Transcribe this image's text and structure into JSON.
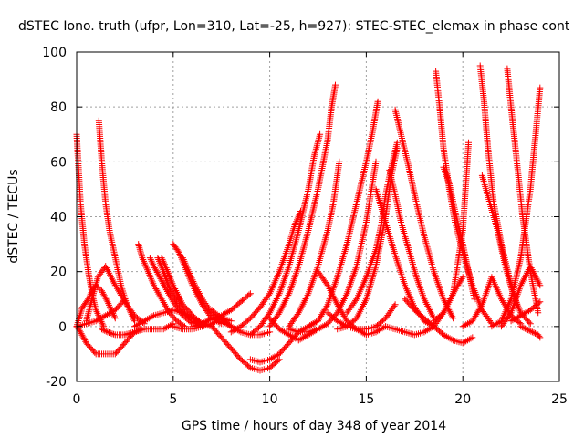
{
  "chart_data": {
    "type": "scatter",
    "title": "dSTEC Iono. truth (ufpr, Lon=310, Lat=-25, h=927): STEC-STEC_elemax in phase cont",
    "xlabel": "GPS time / hours of day 348 of year 2014",
    "ylabel": "dSTEC  / TECUs",
    "xlim": [
      0,
      25
    ],
    "ylim": [
      -20,
      100
    ],
    "xticks": [
      "0",
      "5",
      "10",
      "15",
      "20",
      "25"
    ],
    "yticks": [
      "-20",
      "0",
      "20",
      "40",
      "60",
      "80",
      "100"
    ],
    "grid": true,
    "marker": "+",
    "color": "#ff0000",
    "series": [
      {
        "x": [
          0.0,
          0.2,
          0.4,
          0.6,
          0.8,
          1.0,
          1.4
        ],
        "y": [
          70,
          45,
          30,
          20,
          12,
          6,
          0
        ]
      },
      {
        "x": [
          0.0,
          0.2,
          0.5,
          1.0,
          1.5,
          2.0,
          2.5,
          3.0
        ],
        "y": [
          0,
          -2,
          -6,
          -10,
          -10,
          -10,
          -6,
          -2
        ]
      },
      {
        "x": [
          0.0,
          0.3,
          0.6,
          0.8,
          1.0,
          1.3,
          1.6,
          2.0
        ],
        "y": [
          0,
          7,
          10,
          13,
          15,
          13,
          9,
          3
        ]
      },
      {
        "x": [
          0.5,
          0.8,
          1.1,
          1.5,
          2.0,
          2.5,
          3.0,
          3.5
        ],
        "y": [
          2,
          10,
          18,
          22,
          15,
          9,
          4,
          1
        ]
      },
      {
        "x": [
          0.0,
          0.5,
          1.0,
          1.5,
          2.0,
          2.5
        ],
        "y": [
          0,
          1,
          2,
          4,
          6,
          10
        ]
      },
      {
        "x": [
          1.15,
          1.3,
          1.5,
          1.7,
          2.0,
          2.3,
          2.6,
          3.0
        ],
        "y": [
          75,
          60,
          45,
          35,
          25,
          15,
          8,
          2
        ]
      },
      {
        "x": [
          1.3,
          1.6,
          2.0,
          2.5,
          3.0,
          3.3
        ],
        "y": [
          -1,
          -2,
          -3,
          -3,
          -2,
          -1
        ]
      },
      {
        "x": [
          2.5,
          3.0,
          3.5,
          4.0,
          4.5,
          5.0
        ],
        "y": [
          -3,
          -2,
          -1,
          -1,
          -1,
          1
        ]
      },
      {
        "x": [
          3.2,
          3.4,
          3.7,
          4.0,
          4.4,
          4.8,
          5.2,
          5.6
        ],
        "y": [
          30,
          25,
          20,
          15,
          10,
          5,
          2,
          0
        ]
      },
      {
        "x": [
          3.8,
          4.0,
          4.3,
          4.6,
          5.0,
          5.5,
          6.0
        ],
        "y": [
          25,
          22,
          18,
          14,
          9,
          4,
          1
        ]
      },
      {
        "x": [
          4.2,
          4.5,
          4.8,
          5.2,
          5.6,
          6.0,
          6.5
        ],
        "y": [
          25,
          20,
          14,
          9,
          5,
          2,
          0
        ]
      },
      {
        "x": [
          3.0,
          3.5,
          4.0,
          4.5,
          5.0,
          5.5,
          6.0,
          6.5,
          7.0
        ],
        "y": [
          0,
          2,
          4,
          5,
          6,
          5,
          3,
          1,
          0
        ]
      },
      {
        "x": [
          4.4,
          4.6,
          5.0,
          5.5,
          6.0,
          6.5,
          7.0
        ],
        "y": [
          25,
          22,
          15,
          8,
          4,
          1,
          0
        ]
      },
      {
        "x": [
          5.0,
          5.3,
          5.6,
          6.0,
          6.5,
          7.0,
          7.5
        ],
        "y": [
          30,
          27,
          22,
          15,
          8,
          3,
          1
        ]
      },
      {
        "x": [
          5.5,
          5.8,
          6.2,
          6.6,
          7.0,
          7.5,
          8.0
        ],
        "y": [
          25,
          20,
          14,
          9,
          5,
          2,
          0
        ]
      },
      {
        "x": [
          5.0,
          5.5,
          6.0,
          6.5,
          7.0,
          7.5,
          8.0
        ],
        "y": [
          0,
          -1,
          -1,
          0,
          1,
          3,
          2
        ]
      },
      {
        "x": [
          7.0,
          7.5,
          8.0,
          8.5,
          9.0,
          9.5,
          10.0,
          10.5
        ],
        "y": [
          0,
          -4,
          -8,
          -12,
          -15,
          -16,
          -15,
          -12
        ]
      },
      {
        "x": [
          6.0,
          6.5,
          7.0,
          7.5,
          8.0,
          8.5,
          9.0
        ],
        "y": [
          0,
          1,
          3,
          4,
          6,
          9,
          12
        ]
      },
      {
        "x": [
          7.0,
          7.5,
          8.0,
          8.5,
          9.0,
          9.5,
          10.0
        ],
        "y": [
          6,
          3,
          0,
          -2,
          -3,
          -3,
          -2
        ]
      },
      {
        "x": [
          9.0,
          9.5,
          10.0,
          10.5,
          11.0,
          11.5,
          12.0,
          12.5
        ],
        "y": [
          -12,
          -13,
          -12,
          -10,
          -6,
          -2,
          0,
          2
        ]
      },
      {
        "x": [
          8.0,
          8.5,
          9.0,
          9.5,
          10.0,
          10.5,
          11.0,
          11.3,
          11.6
        ],
        "y": [
          -2,
          0,
          3,
          7,
          12,
          20,
          30,
          37,
          42
        ]
      },
      {
        "x": [
          9.0,
          9.5,
          10.0,
          10.5,
          11.0,
          11.5,
          12.0,
          12.3,
          12.6
        ],
        "y": [
          -3,
          0,
          5,
          12,
          22,
          35,
          50,
          62,
          70
        ]
      },
      {
        "x": [
          10.0,
          10.5,
          11.0,
          11.5,
          12.0,
          12.5,
          13.0,
          13.2,
          13.4
        ],
        "y": [
          0,
          5,
          12,
          22,
          35,
          50,
          68,
          80,
          88
        ]
      },
      {
        "x": [
          11.0,
          11.5,
          12.0,
          12.5,
          13.0,
          13.3,
          13.6
        ],
        "y": [
          0,
          5,
          12,
          22,
          35,
          45,
          60
        ]
      },
      {
        "x": [
          10.0,
          10.5,
          11.0,
          11.5,
          12.0,
          12.5
        ],
        "y": [
          3,
          -1,
          -3,
          -5,
          -3,
          -1
        ]
      },
      {
        "x": [
          11.0,
          11.5,
          12.0,
          12.5,
          13.0,
          13.5,
          14.0,
          14.5,
          15.0,
          15.5
        ],
        "y": [
          -1,
          -2,
          -2,
          -1,
          1,
          5,
          12,
          22,
          38,
          60
        ]
      },
      {
        "x": [
          12.0,
          12.5,
          13.0,
          13.5,
          14.0,
          14.5,
          15.0,
          15.3,
          15.6
        ],
        "y": [
          0,
          2,
          8,
          18,
          30,
          45,
          60,
          70,
          82
        ]
      },
      {
        "x": [
          12.5,
          13.0,
          13.5,
          14.0,
          14.5,
          15.0,
          15.5,
          16.0
        ],
        "y": [
          20,
          15,
          8,
          2,
          -1,
          -3,
          -2,
          0
        ]
      },
      {
        "x": [
          13.0,
          13.5,
          14.0,
          14.5,
          15.0,
          15.5,
          16.0,
          16.5
        ],
        "y": [
          5,
          2,
          0,
          -1,
          -1,
          0,
          3,
          8
        ]
      },
      {
        "x": [
          13.5,
          14.0,
          14.5,
          15.0,
          15.5,
          16.0,
          16.3,
          16.6
        ],
        "y": [
          -1,
          0,
          3,
          10,
          22,
          40,
          55,
          65
        ]
      },
      {
        "x": [
          14.0,
          14.5,
          15.0,
          15.5,
          15.8,
          16.0,
          16.3,
          16.6
        ],
        "y": [
          5,
          10,
          18,
          28,
          38,
          48,
          58,
          67
        ]
      },
      {
        "x": [
          16.2,
          16.5,
          16.8,
          17.2,
          17.6,
          18.0,
          18.5
        ],
        "y": [
          57,
          48,
          38,
          28,
          18,
          10,
          3
        ]
      },
      {
        "x": [
          16.5,
          16.8,
          17.2,
          17.6,
          18.0,
          18.5,
          19.0,
          19.5
        ],
        "y": [
          79,
          70,
          58,
          45,
          33,
          20,
          10,
          3
        ]
      },
      {
        "x": [
          15.5,
          16.0,
          16.5,
          17.0,
          17.5,
          18.0,
          18.5
        ],
        "y": [
          50,
          38,
          26,
          15,
          7,
          2,
          0
        ]
      },
      {
        "x": [
          16.0,
          16.5,
          17.0,
          17.5,
          18.0,
          18.5,
          19.0,
          19.5,
          20.0
        ],
        "y": [
          0,
          -1,
          -2,
          -3,
          -2,
          0,
          5,
          12,
          18
        ]
      },
      {
        "x": [
          17.0,
          17.5,
          18.0,
          18.5,
          19.0,
          19.5,
          20.0,
          20.5
        ],
        "y": [
          10,
          6,
          3,
          0,
          -3,
          -5,
          -6,
          -4
        ]
      },
      {
        "x": [
          18.6,
          18.8,
          19.0,
          19.3,
          19.6,
          20.0,
          20.5,
          21.0,
          21.5
        ],
        "y": [
          93,
          80,
          65,
          50,
          38,
          27,
          15,
          6,
          1
        ]
      },
      {
        "x": [
          19.0,
          19.3,
          19.6,
          20.0,
          20.3,
          20.6
        ],
        "y": [
          58,
          52,
          42,
          30,
          20,
          10
        ]
      },
      {
        "x": [
          18.5,
          19.0,
          19.5,
          20.0,
          20.3
        ],
        "y": [
          2,
          5,
          12,
          35,
          67
        ]
      },
      {
        "x": [
          20.0,
          20.5,
          21.0,
          21.5,
          22.0,
          22.5,
          23.0
        ],
        "y": [
          0,
          2,
          8,
          18,
          10,
          4,
          1
        ]
      },
      {
        "x": [
          20.9,
          21.1,
          21.3,
          21.6,
          22.0,
          22.4,
          22.8
        ],
        "y": [
          95,
          82,
          65,
          45,
          30,
          18,
          8
        ]
      },
      {
        "x": [
          21.0,
          21.4,
          21.8,
          22.2,
          22.6,
          23.0,
          23.5
        ],
        "y": [
          55,
          45,
          35,
          22,
          12,
          5,
          1
        ]
      },
      {
        "x": [
          21.5,
          22.0,
          22.5,
          23.0,
          23.5,
          24.0
        ],
        "y": [
          0,
          2,
          10,
          25,
          50,
          87
        ]
      },
      {
        "x": [
          22.3,
          22.5,
          22.8,
          23.1,
          23.5,
          23.9
        ],
        "y": [
          94,
          80,
          60,
          40,
          20,
          5
        ]
      },
      {
        "x": [
          22.0,
          22.5,
          23.0,
          23.5,
          24.0
        ],
        "y": [
          0,
          5,
          15,
          22,
          15
        ]
      },
      {
        "x": [
          23.0,
          23.3,
          23.6,
          23.9,
          24.0
        ],
        "y": [
          0,
          -1,
          -2,
          -3,
          -4
        ]
      },
      {
        "x": [
          22.5,
          23.0,
          23.5,
          24.0
        ],
        "y": [
          2,
          4,
          6,
          9
        ]
      }
    ]
  }
}
